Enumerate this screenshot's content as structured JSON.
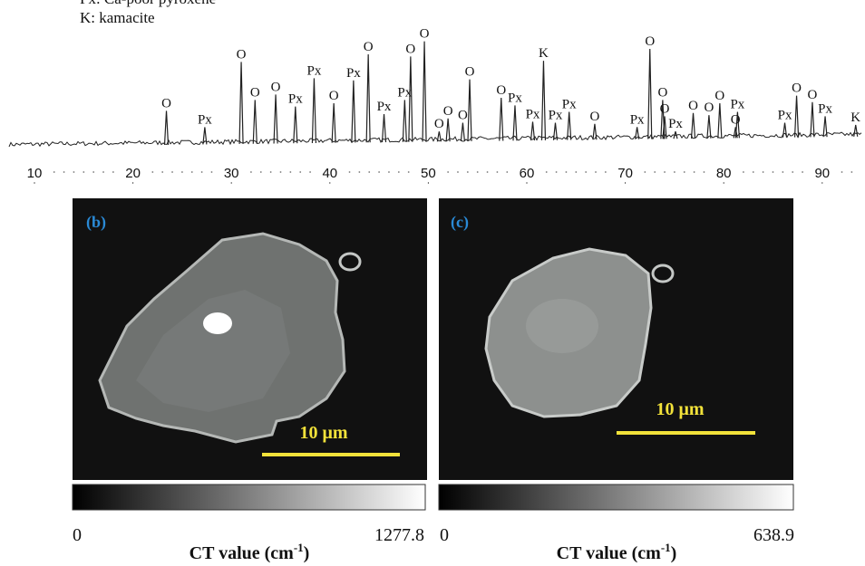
{
  "legend_lines": [
    "Px: Ca-poor pyroxene",
    "K: kamacite"
  ],
  "xrd": {
    "axis_ticks": [
      10,
      20,
      30,
      40,
      50,
      60,
      70,
      80,
      90
    ],
    "peaks": [
      {
        "label": "O",
        "two_theta": 23.4,
        "intensity": 33
      },
      {
        "label": "Px",
        "two_theta": 27.3,
        "intensity": 18
      },
      {
        "label": "O",
        "two_theta": 31.0,
        "intensity": 78
      },
      {
        "label": "O",
        "two_theta": 32.4,
        "intensity": 43
      },
      {
        "label": "O",
        "two_theta": 34.5,
        "intensity": 48
      },
      {
        "label": "Px",
        "two_theta": 36.5,
        "intensity": 37
      },
      {
        "label": "Px",
        "two_theta": 38.4,
        "intensity": 63
      },
      {
        "label": "O",
        "two_theta": 40.4,
        "intensity": 40
      },
      {
        "label": "Px",
        "two_theta": 42.4,
        "intensity": 61
      },
      {
        "label": "O",
        "two_theta": 43.9,
        "intensity": 85
      },
      {
        "label": "Px",
        "two_theta": 45.5,
        "intensity": 30
      },
      {
        "label": "Px",
        "two_theta": 47.6,
        "intensity": 43
      },
      {
        "label": "O",
        "two_theta": 48.2,
        "intensity": 83
      },
      {
        "label": "O",
        "two_theta": 49.6,
        "intensity": 97
      },
      {
        "label": "O",
        "two_theta": 51.1,
        "intensity": 14
      },
      {
        "label": "O",
        "two_theta": 52.0,
        "intensity": 26
      },
      {
        "label": "O",
        "two_theta": 53.5,
        "intensity": 22
      },
      {
        "label": "O",
        "two_theta": 54.2,
        "intensity": 62
      },
      {
        "label": "O",
        "two_theta": 57.4,
        "intensity": 45
      },
      {
        "label": "Px",
        "two_theta": 58.8,
        "intensity": 38
      },
      {
        "label": "Px",
        "two_theta": 60.6,
        "intensity": 23
      },
      {
        "label": "K",
        "two_theta": 61.7,
        "intensity": 79
      },
      {
        "label": "Px",
        "two_theta": 62.9,
        "intensity": 22
      },
      {
        "label": "Px",
        "two_theta": 64.3,
        "intensity": 32
      },
      {
        "label": "O",
        "two_theta": 66.9,
        "intensity": 21
      },
      {
        "label": "Px",
        "two_theta": 71.2,
        "intensity": 18
      },
      {
        "label": "O",
        "two_theta": 72.5,
        "intensity": 90
      },
      {
        "label": "O",
        "two_theta": 73.8,
        "intensity": 43
      },
      {
        "label": "O",
        "two_theta": 74.0,
        "intensity": 28
      },
      {
        "label": "Px",
        "two_theta": 75.1,
        "intensity": 14
      },
      {
        "label": "O",
        "two_theta": 76.9,
        "intensity": 31
      },
      {
        "label": "O",
        "two_theta": 78.5,
        "intensity": 29
      },
      {
        "label": "O",
        "two_theta": 79.6,
        "intensity": 40
      },
      {
        "label": "Px",
        "two_theta": 81.4,
        "intensity": 32
      },
      {
        "label": "O",
        "two_theta": 81.2,
        "intensity": 18
      },
      {
        "label": "Px",
        "two_theta": 86.2,
        "intensity": 22
      },
      {
        "label": "O",
        "two_theta": 87.4,
        "intensity": 47
      },
      {
        "label": "O",
        "two_theta": 89.0,
        "intensity": 41
      },
      {
        "label": "Px",
        "two_theta": 90.3,
        "intensity": 28
      },
      {
        "label": "K",
        "two_theta": 93.4,
        "intensity": 20
      }
    ]
  },
  "panels": [
    {
      "label": "(b)",
      "scale_bar": "10 μm",
      "colorbar": {
        "min": 0,
        "max": 1277.8,
        "title": "CT value (cm",
        "title_superscript": "-1",
        "title_end": ")"
      }
    },
    {
      "label": "(c)",
      "scale_bar": "10 μm",
      "colorbar": {
        "min": 0,
        "max": 638.9,
        "title": "CT value (cm",
        "title_superscript": "-1",
        "title_end": ")"
      }
    }
  ]
}
